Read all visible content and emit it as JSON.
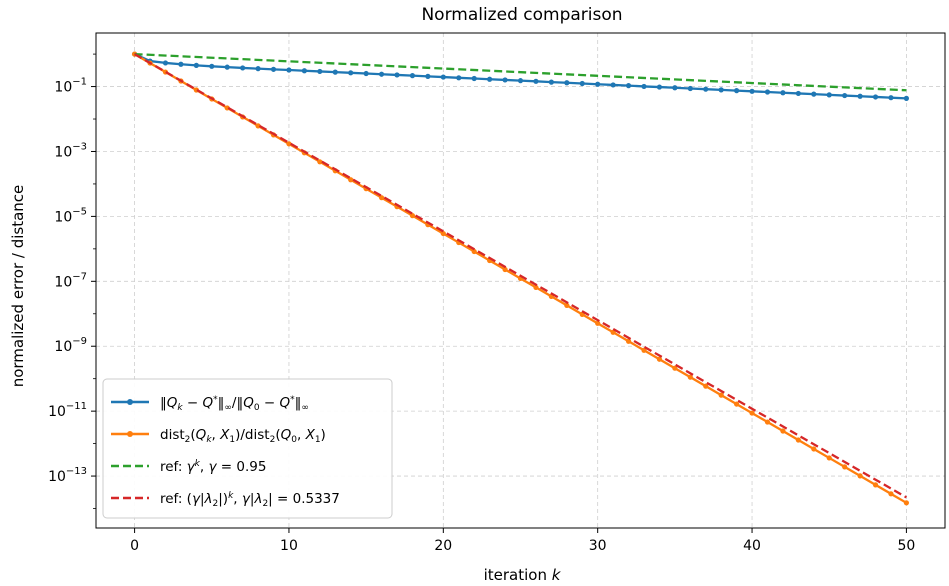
{
  "chart_data": {
    "type": "line",
    "title": "Normalized comparison",
    "xlabel": "iteration",
    "xlabel_var": "k",
    "ylabel": "normalized error / distance",
    "yscale": "log",
    "xlim": [
      -2.5,
      52.5
    ],
    "ylim_exp": [
      -14.6,
      0.65
    ],
    "grid": true,
    "legend_position": "lower-left",
    "x_ticks": [
      0,
      10,
      20,
      30,
      40,
      50
    ],
    "y_tick_exponents": [
      -13,
      -11,
      -9,
      -7,
      -5,
      -3,
      -1
    ],
    "series": [
      {
        "name": "‖Q_k − Q*‖∞/‖Q0 − Q*‖∞",
        "color": "#1f77b4",
        "style": "solid-markers",
        "x": [
          0,
          1,
          2,
          3,
          4,
          5,
          6,
          7,
          8,
          9,
          10,
          11,
          12,
          13,
          14,
          15,
          16,
          17,
          18,
          19,
          20,
          21,
          22,
          23,
          24,
          25,
          26,
          27,
          28,
          29,
          30,
          31,
          32,
          33,
          34,
          35,
          36,
          37,
          38,
          39,
          40,
          41,
          42,
          43,
          44,
          45,
          46,
          47,
          48,
          49,
          50
        ],
        "y": [
          1.0,
          0.61,
          0.535,
          0.486,
          0.45,
          0.42,
          0.396,
          0.375,
          0.356,
          0.339,
          0.323,
          0.307,
          0.292,
          0.278,
          0.265,
          0.252,
          0.24,
          0.228,
          0.217,
          0.206,
          0.196,
          0.186,
          0.177,
          0.168,
          0.16,
          0.152,
          0.145,
          0.137,
          0.131,
          0.124,
          0.118,
          0.112,
          0.107,
          0.101,
          0.0965,
          0.0918,
          0.0872,
          0.083,
          0.0789,
          0.075,
          0.0714,
          0.0679,
          0.0645,
          0.0614,
          0.0584,
          0.0555,
          0.0528,
          0.0502,
          0.0478,
          0.0454,
          0.0432
        ]
      },
      {
        "name": "dist2(Q_k, X1)/dist2(Q0, X1)",
        "color": "#ff7f0e",
        "style": "solid-markers",
        "x": [
          0,
          50
        ],
        "y": [
          1.0,
          1.5e-14
        ],
        "geometric_steps": 50
      },
      {
        "name": "ref: γ^k, γ = 0.95",
        "color": "#2ca02c",
        "style": "dashed",
        "x": [
          0,
          50
        ],
        "y": [
          1.0,
          0.0769
        ]
      },
      {
        "name": "ref: (γ|λ2|)^k, γ|λ2| = 0.5337",
        "color": "#d62728",
        "style": "dashed",
        "x": [
          0,
          50
        ],
        "y": [
          1.0,
          2.2e-14
        ]
      }
    ]
  }
}
